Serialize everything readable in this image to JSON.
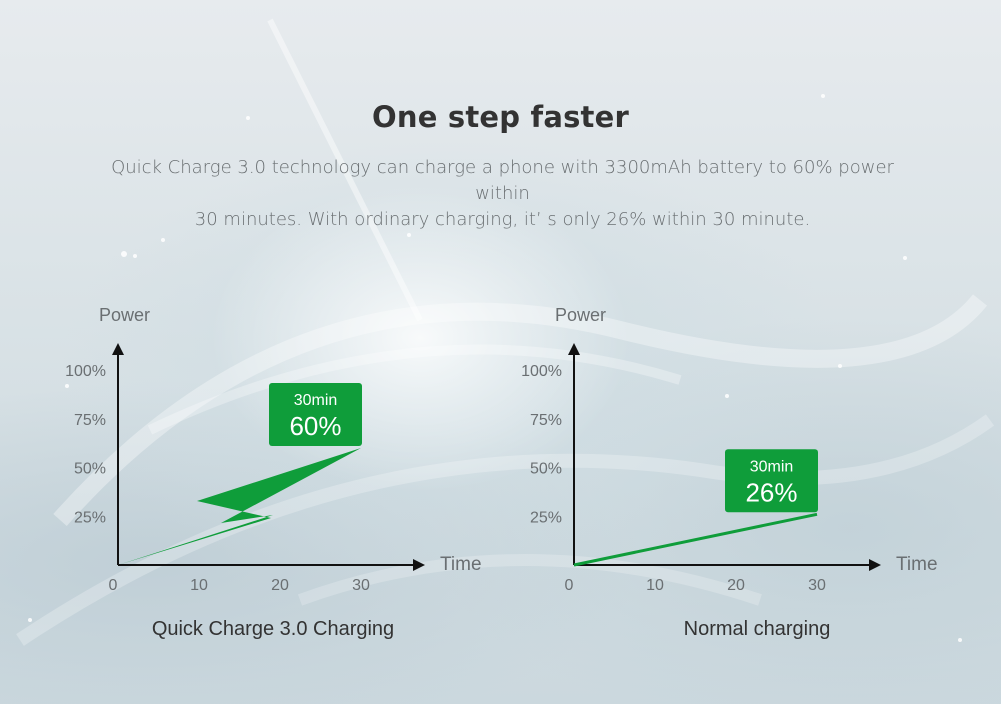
{
  "headline": "One step faster",
  "description": {
    "line1": "Quick Charge 3.0 technology can charge a phone with 3300mAh battery to 60% power within",
    "line2": "30 minutes. With ordinary charging, it’  s only 26% within 30 minute."
  },
  "colors": {
    "accent": "#0f9d3a",
    "text_dark": "#333333",
    "text_muted": "#6a6f72"
  },
  "chart_data": [
    {
      "type": "line",
      "title": "",
      "xlabel": "Time",
      "ylabel": "Power",
      "x_ticks": [
        "0",
        "10",
        "20",
        "30"
      ],
      "y_ticks": [
        "25%",
        "50%",
        "75%",
        "100%"
      ],
      "xlim": [
        0,
        30
      ],
      "ylim": [
        0,
        100
      ],
      "series": [
        {
          "x": [
            0,
            30
          ],
          "y": [
            0,
            60
          ]
        }
      ],
      "annotation": {
        "time": "30min",
        "value": "60%"
      },
      "caption": "Quick Charge 3.0 Charging",
      "style": "lightning-bolt"
    },
    {
      "type": "line",
      "title": "",
      "xlabel": "Time",
      "ylabel": "Power",
      "x_ticks": [
        "0",
        "10",
        "20",
        "30"
      ],
      "y_ticks": [
        "25%",
        "50%",
        "75%",
        "100%"
      ],
      "xlim": [
        0,
        30
      ],
      "ylim": [
        0,
        100
      ],
      "series": [
        {
          "x": [
            0,
            30
          ],
          "y": [
            0,
            26
          ]
        }
      ],
      "annotation": {
        "time": "30min",
        "value": "26%"
      },
      "caption": "Normal charging",
      "style": "line"
    }
  ]
}
